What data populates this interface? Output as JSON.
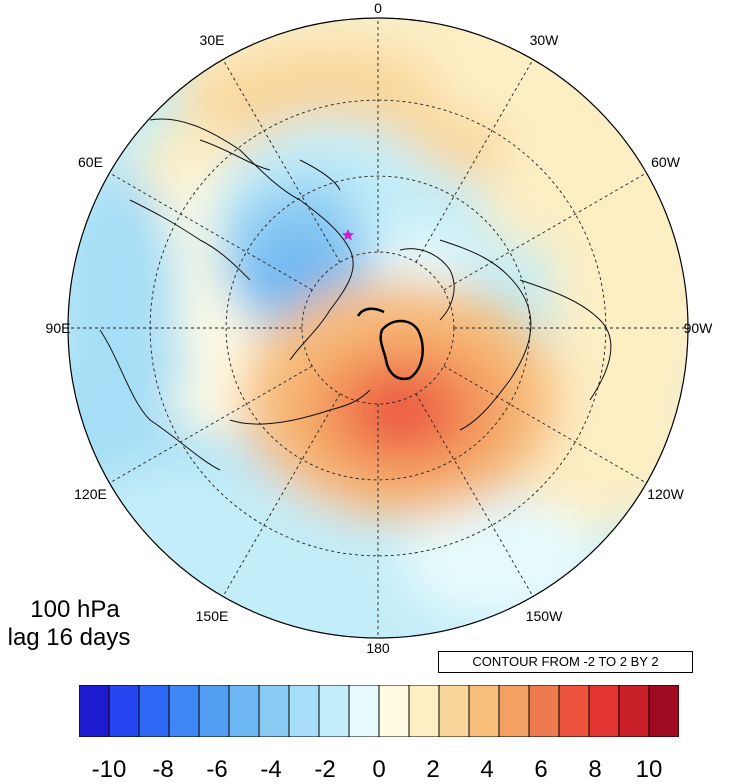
{
  "figure": {
    "level_label": "100 hPa",
    "lag_label": "lag 16 days",
    "contour_info": "CONTOUR FROM -2 TO 2 BY 2"
  },
  "longitude_labels": [
    "0",
    "30W",
    "60W",
    "90W",
    "120W",
    "150W",
    "180",
    "150E",
    "120E",
    "90E",
    "60E",
    "30E"
  ],
  "colorbar": {
    "colors": [
      "#1f1bd1",
      "#2445f0",
      "#2f68f5",
      "#3f86f5",
      "#539df3",
      "#6fb7f2",
      "#8acbf3",
      "#a5def6",
      "#c3edf8",
      "#e6fafd",
      "#fffbe3",
      "#fdeec4",
      "#f9d79c",
      "#f7be7c",
      "#f4a064",
      "#f07a4f",
      "#ec533c",
      "#e23430",
      "#c92029",
      "#9e0b22"
    ],
    "tick_labels": [
      "-10",
      "-8",
      "-6",
      "-4",
      "-2",
      "0",
      "2",
      "4",
      "6",
      "8",
      "10"
    ]
  },
  "marker": {
    "color": "#cc22cc"
  },
  "chart_data": {
    "type": "heatmap",
    "projection": "north polar stereographic",
    "field_range": [
      -10,
      10
    ],
    "anomalies": [
      {
        "region": "Ural / western Siberia",
        "sign": "negative",
        "approx_min": -6
      },
      {
        "region": "Alaska / Bering Strait / eastern Siberia",
        "sign": "positive",
        "approx_max": 6
      },
      {
        "region": "Europe / Atlantic",
        "sign": "positive",
        "approx_max": 2
      }
    ]
  }
}
